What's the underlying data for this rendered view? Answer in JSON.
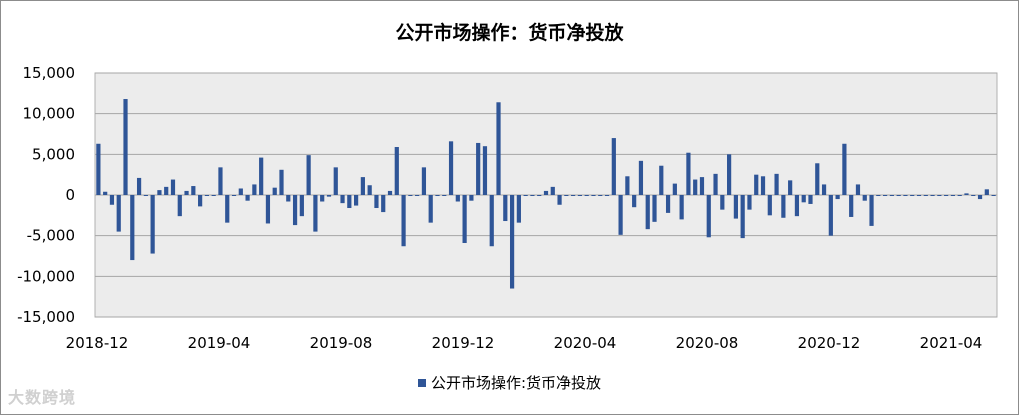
{
  "chart_data": {
    "type": "bar",
    "title": "公开市场操作：货币净投放",
    "legend": [
      "公开市场操作:货币净投放"
    ],
    "legend_position": "bottom",
    "ylim": [
      -15000,
      15000
    ],
    "y_ticks": [
      "15,000",
      "10,000",
      "5,000",
      "0",
      "-5,000",
      "-10,000",
      "-15,000"
    ],
    "x_ticks": [
      "2018-12",
      "2019-04",
      "2019-08",
      "2019-12",
      "2020-04",
      "2020-08",
      "2020-12",
      "2021-04"
    ],
    "grid": true,
    "series": [
      {
        "name": "公开市场操作:货币净投放",
        "color": "#2f5597",
        "values": [
          6300,
          400,
          -1200,
          -4500,
          11800,
          -8000,
          2100,
          0,
          -7200,
          600,
          1000,
          1900,
          -2600,
          500,
          1100,
          -1400,
          0,
          0,
          3400,
          -3400,
          0,
          800,
          -700,
          1300,
          4600,
          -3500,
          900,
          3100,
          -800,
          -3700,
          -2600,
          4900,
          -4500,
          -800,
          -200,
          3400,
          -1000,
          -1600,
          -1300,
          2200,
          1200,
          -1600,
          -2100,
          500,
          5900,
          -6300,
          0,
          0,
          3400,
          -3400,
          0,
          0,
          6600,
          -800,
          -5900,
          -700,
          6400,
          6000,
          -6300,
          11400,
          -3200,
          -11500,
          -3400,
          0,
          0,
          0,
          500,
          1000,
          -1200,
          0,
          0,
          0,
          0,
          0,
          0,
          0,
          7000,
          -4900,
          2300,
          -1500,
          4200,
          -4200,
          -3300,
          3600,
          -2200,
          1400,
          -3000,
          5200,
          1900,
          2200,
          -5200,
          2600,
          -1800,
          5000,
          -2900,
          -5300,
          -1800,
          2500,
          2300,
          -2500,
          2600,
          -2800,
          1800,
          -2600,
          -900,
          -1100,
          3900,
          1300,
          -5000,
          -500,
          6300,
          -2700,
          1300,
          -700,
          -3800,
          0,
          0,
          0,
          0,
          0,
          0,
          0,
          0,
          0,
          0,
          0,
          0,
          0,
          200,
          0,
          -500,
          700,
          0
        ]
      }
    ]
  },
  "legend_label": "公开市场操作:货币净投放",
  "watermark": "大数跨境"
}
